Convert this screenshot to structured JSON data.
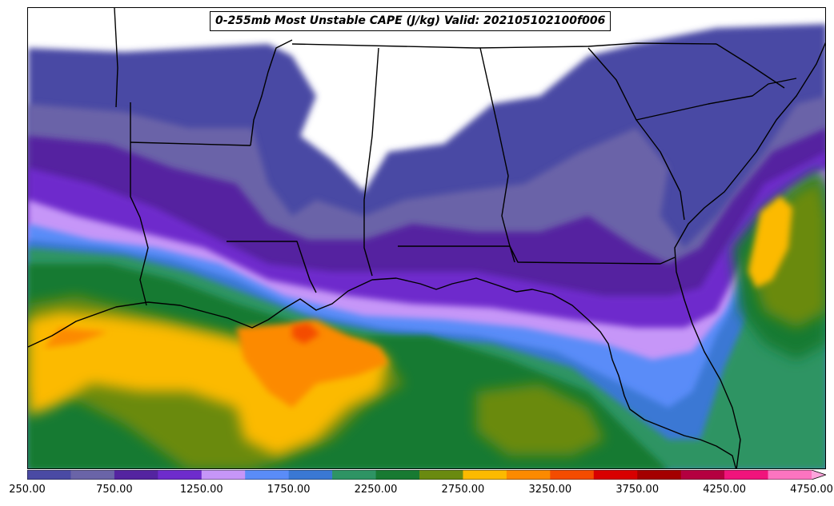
{
  "map": {
    "title": "0-255mb Most Unstable CAPE (J/kg) Valid: 202105102100f006",
    "region": "Southeastern United States and Gulf of Mexico",
    "background_color": "#ffffff",
    "boundary_color": "#000000"
  },
  "colorbar": {
    "levels": [
      250,
      500,
      750,
      1000,
      1250,
      1500,
      1750,
      2000,
      2250,
      2500,
      2750,
      3000,
      3250,
      3500,
      3750,
      4000,
      4250,
      4500,
      4750,
      5000
    ],
    "colors": [
      "#4a4aa4",
      "#6a64a8",
      "#5424a0",
      "#6e2ccc",
      "#c696f8",
      "#5a8cf8",
      "#3a78d4",
      "#2e9464",
      "#187a32",
      "#6a8a10",
      "#fcba00",
      "#fc8a00",
      "#f44c00",
      "#d80000",
      "#a40000",
      "#b40040",
      "#f0147c",
      "#fc74c0",
      "#fca4dc"
    ],
    "extend": "max",
    "tick_labels": [
      "250.00",
      "750.00",
      "1250.00",
      "1750.00",
      "2250.00",
      "2750.00",
      "3250.00",
      "3750.00",
      "4250.00",
      "4750.00"
    ]
  }
}
